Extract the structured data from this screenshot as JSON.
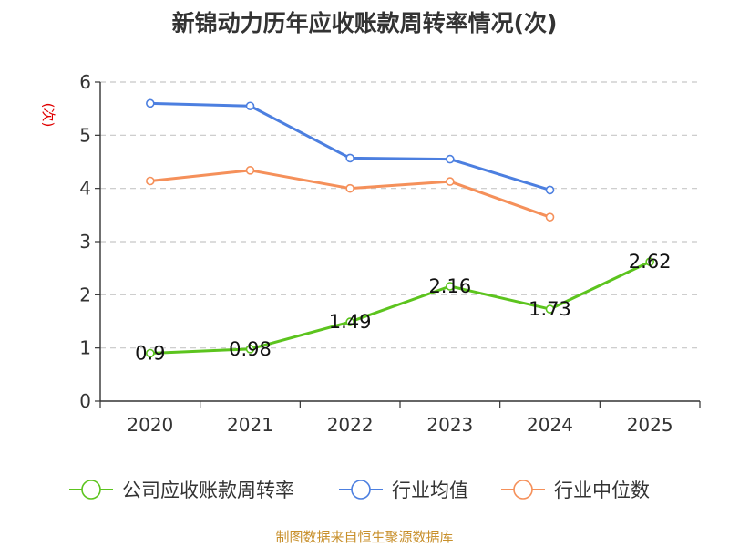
{
  "chart_data": {
    "type": "line",
    "title": "新锦动力历年应收账款周转率情况(次)",
    "ylabel": "(次)",
    "xlabel": "",
    "categories": [
      "2020",
      "2021",
      "2022",
      "2023",
      "2024",
      "2025"
    ],
    "yticks": [
      "0",
      "1",
      "2",
      "3",
      "4",
      "5",
      "6"
    ],
    "ylim": [
      0,
      6
    ],
    "grid": true,
    "legend_position": "bottom",
    "series": [
      {
        "name": "公司应收账款周转率",
        "color": "#5cc41e",
        "values": [
          0.9,
          0.98,
          1.49,
          2.16,
          1.73,
          2.62
        ],
        "labels": [
          "0.9",
          "0.98",
          "1.49",
          "2.16",
          "1.73",
          "2.62"
        ]
      },
      {
        "name": "行业均值",
        "color": "#4c7fe0",
        "values": [
          5.6,
          5.55,
          4.57,
          4.55,
          3.97,
          null
        ]
      },
      {
        "name": "行业中位数",
        "color": "#f5905a",
        "values": [
          4.14,
          4.34,
          4.0,
          4.13,
          3.46,
          null
        ]
      }
    ]
  },
  "footer": {
    "source": "制图数据来自恒生聚源数据库"
  }
}
